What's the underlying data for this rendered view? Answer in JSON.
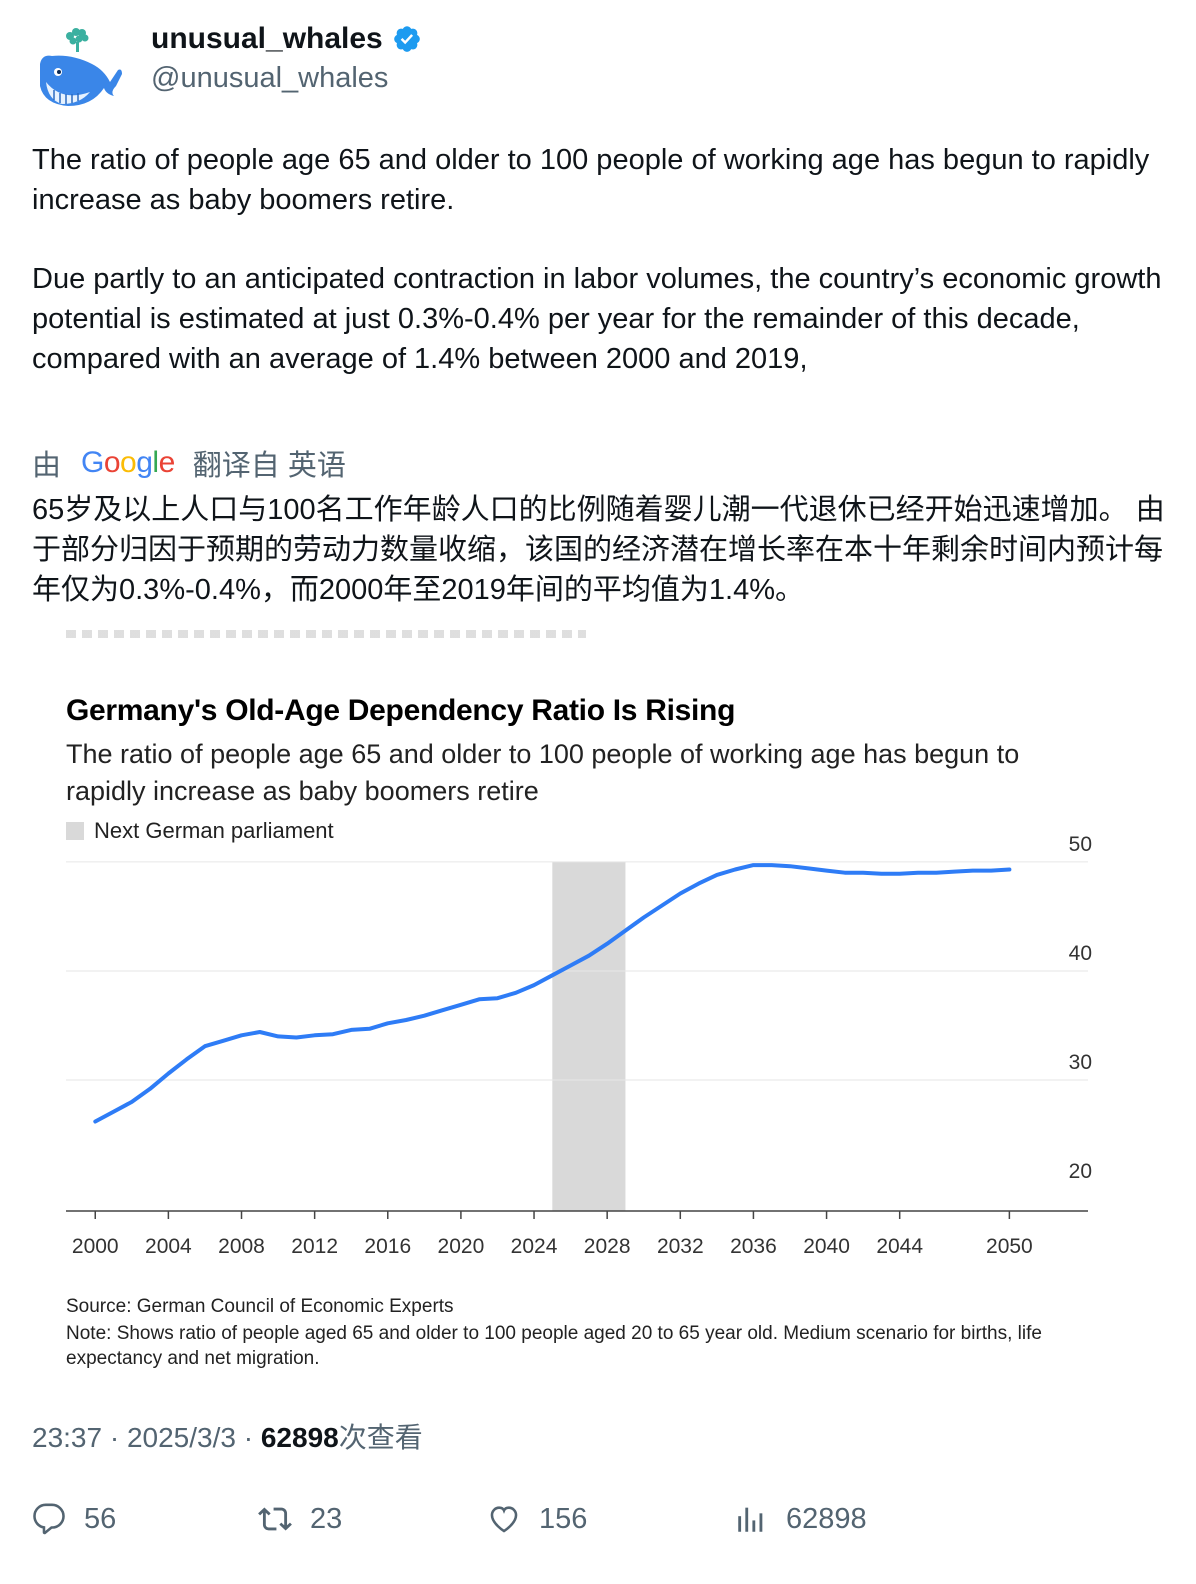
{
  "user": {
    "display_name": "unusual_whales",
    "handle": "@unusual_whales",
    "verified": true,
    "avatar_icon": "whale-icon",
    "verified_icon": "verified-badge-icon"
  },
  "tweet": {
    "paragraph1": "The ratio of people age 65 and older to 100 people of working age has begun to rapidly increase as baby boomers retire.",
    "paragraph2": "Due partly to an anticipated contraction in labor volumes, the country’s economic growth potential is estimated at just 0.3%-0.4% per year for the remainder of this decade, compared with an average of 1.4% between 2000 and 2019,"
  },
  "translation": {
    "prefix": "由",
    "provider": "Google",
    "suffix": "翻译自 英语",
    "text": "65岁及以上人口与100名工作年龄人口的比例随着婴儿潮一代退休已经开始迅速增加。 由于部分归因于预期的劳动力数量收缩，该国的经济潜在增长率在本十年剩余时间内预计每年仅为0.3%-0.4%，而2000年至2019年间的平均值为1.4%。"
  },
  "chart_data": {
    "type": "line",
    "title": "Germany's Old-Age Dependency Ratio Is Rising",
    "subtitle": "The ratio of people age 65 and older to 100 people of working age has begun to rapidly increase as baby boomers retire",
    "legend": [
      {
        "label": "Next German parliament",
        "color": "#d9d9d9"
      }
    ],
    "shaded_range": [
      2025,
      2029
    ],
    "x_tick_labels": [
      "2000",
      "2004",
      "2008",
      "2012",
      "2016",
      "2020",
      "2024",
      "2028",
      "2032",
      "2036",
      "2040",
      "2044",
      "2050"
    ],
    "y_tick_labels": [
      "50",
      "40",
      "30",
      "20"
    ],
    "y_ticks": [
      50,
      40,
      30,
      20
    ],
    "ylim": [
      18,
      52
    ],
    "xlim": [
      1998.4,
      2054.3
    ],
    "y_axis_position": "right",
    "grid": true,
    "series": [
      {
        "color": "#2e7cf6",
        "x": [
          2000,
          2001,
          2002,
          2003,
          2004,
          2005,
          2006,
          2007,
          2008,
          2009,
          2010,
          2011,
          2012,
          2013,
          2014,
          2015,
          2016,
          2017,
          2018,
          2019,
          2020,
          2021,
          2022,
          2023,
          2024,
          2025,
          2026,
          2027,
          2028,
          2029,
          2030,
          2031,
          2032,
          2033,
          2034,
          2035,
          2036,
          2037,
          2038,
          2039,
          2040,
          2041,
          2042,
          2043,
          2044,
          2045,
          2046,
          2047,
          2048,
          2049,
          2050
        ],
        "values": [
          26.2,
          27.1,
          28.0,
          29.2,
          30.6,
          31.9,
          33.1,
          33.6,
          34.1,
          34.4,
          34.0,
          33.9,
          34.1,
          34.2,
          34.6,
          34.7,
          35.2,
          35.5,
          35.9,
          36.4,
          36.9,
          37.4,
          37.5,
          38.0,
          38.7,
          39.6,
          40.5,
          41.4,
          42.5,
          43.7,
          44.9,
          46.0,
          47.1,
          48.0,
          48.8,
          49.3,
          49.7,
          49.7,
          49.6,
          49.4,
          49.2,
          49.0,
          49.0,
          48.9,
          48.9,
          49.0,
          49.0,
          49.1,
          49.2,
          49.2,
          49.3
        ]
      }
    ],
    "source": "Source: German Council of Economic Experts",
    "note": "Note: Shows ratio of people aged 65 and older to 100 people aged 20 to 65 year old. Medium scenario for births, life expectancy and net migration."
  },
  "meta": {
    "time": "23:37",
    "sep": "·",
    "date": "2025/3/3",
    "views": "62898",
    "views_suffix": "次查看"
  },
  "actions": {
    "replies": "56",
    "retweets": "23",
    "likes": "156",
    "views": "62898"
  }
}
